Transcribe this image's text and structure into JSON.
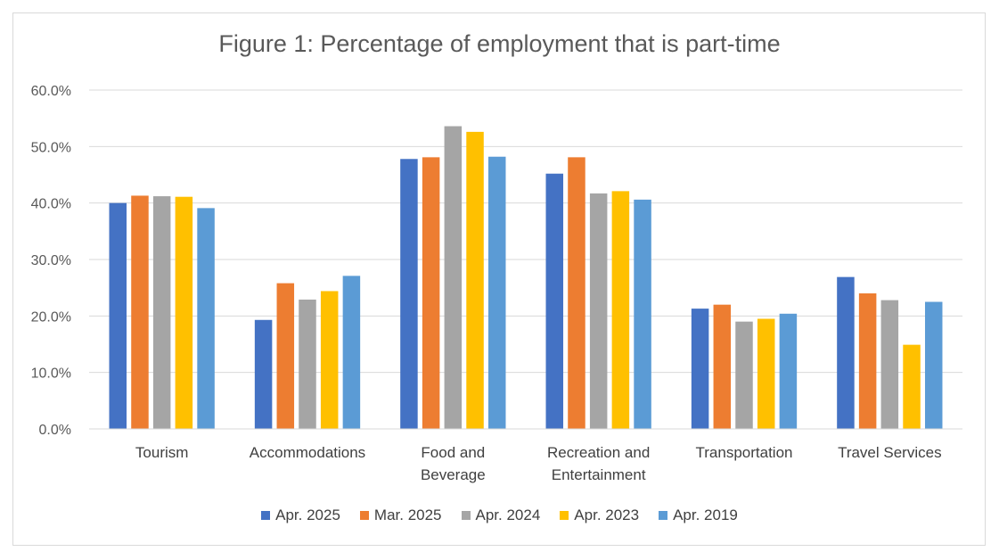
{
  "chart_data": {
    "type": "bar",
    "title": "Figure 1: Percentage of employment that is part-time",
    "xlabel": "",
    "ylabel": "",
    "ylim": [
      0,
      60
    ],
    "yticks": [
      "0.0%",
      "10.0%",
      "20.0%",
      "30.0%",
      "40.0%",
      "50.0%",
      "60.0%"
    ],
    "categories": [
      [
        "Tourism"
      ],
      [
        "Accommodations"
      ],
      [
        "Food and",
        "Beverage"
      ],
      [
        "Recreation and",
        "Entertainment"
      ],
      [
        "Transportation"
      ],
      [
        "Travel Services"
      ]
    ],
    "series": [
      {
        "name": "Apr. 2025",
        "color": "#4472c4",
        "values": [
          40.0,
          19.3,
          47.8,
          45.2,
          21.3,
          26.9
        ]
      },
      {
        "name": "Mar. 2025",
        "color": "#ed7d31",
        "values": [
          41.3,
          25.8,
          48.1,
          48.1,
          22.0,
          24.0
        ]
      },
      {
        "name": "Apr. 2024",
        "color": "#a5a5a5",
        "values": [
          41.2,
          22.9,
          53.6,
          41.7,
          19.0,
          22.8
        ]
      },
      {
        "name": "Apr. 2023",
        "color": "#ffc000",
        "values": [
          41.1,
          24.4,
          52.6,
          42.1,
          19.5,
          14.9
        ]
      },
      {
        "name": "Apr. 2019",
        "color": "#5b9bd5",
        "values": [
          39.1,
          27.1,
          48.2,
          40.6,
          20.4,
          22.5
        ]
      }
    ],
    "grid": true,
    "legend_position": "bottom"
  }
}
